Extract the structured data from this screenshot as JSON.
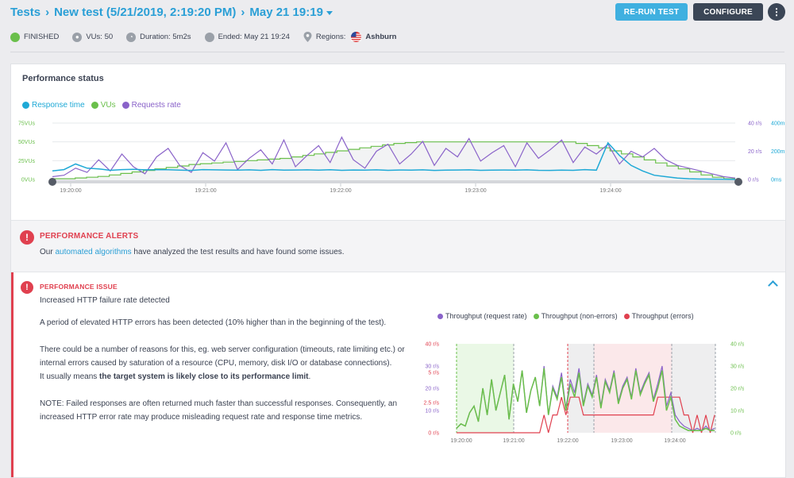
{
  "breadcrumb": {
    "root": "Tests",
    "test_name": "New test (5/21/2019, 2:19:20 PM)",
    "run": "May 21 19:19"
  },
  "toolbar": {
    "rerun_label": "RE-RUN TEST",
    "configure_label": "CONFIGURE",
    "more_label": "⋮"
  },
  "meta": {
    "status": "FINISHED",
    "vus": "VUs: 50",
    "duration": "Duration: 5m2s",
    "ended": "Ended: May 21 19:24",
    "regions_label": "Regions:",
    "region": "Ashburn"
  },
  "colors": {
    "accent": "#2a9fd6",
    "response": "#1fa9d6",
    "vus": "#6abf4b",
    "requests": "#8a63c9",
    "errors": "#e0404f"
  },
  "performance": {
    "title": "Performance status",
    "legend": [
      {
        "name": "Response time",
        "color": "#1fa9d6"
      },
      {
        "name": "VUs",
        "color": "#6abf4b"
      },
      {
        "name": "Requests rate",
        "color": "#8a63c9"
      }
    ]
  },
  "alerts": {
    "title": "PERFORMANCE ALERTS",
    "text_prefix": "Our ",
    "link": "automated algorithms",
    "text_suffix": " have analyzed the test results and have found some issues."
  },
  "issue": {
    "title": "PERFORMANCE ISSUE",
    "subtitle": "Increased HTTP failure rate detected",
    "p1": "A period of elevated HTTP errors has been detected (10% higher than in the beginning of the test).",
    "p2": "There could be a number of reasons for this, eg. web server configuration (timeouts, rate limiting etc.) or internal errors caused by saturation of a resource (CPU, memory, disk I/O or database connections).",
    "p3_prefix": "It usually means ",
    "p3_bold": "the target system is likely close to its performance limit",
    "p3_suffix": ".",
    "p4": "NOTE: Failed responses are often returned much faster than successful responses. Consequently, an increased HTTP error rate may produce misleading request rate and response time metrics."
  },
  "chart_data": [
    {
      "type": "line",
      "x_ticks": [
        "19:20:00",
        "19:21:00",
        "19:22:00",
        "19:23:00",
        "19:24:00"
      ],
      "y_left_ticks": [
        "0VUs",
        "25VUs",
        "50VUs",
        "75VUs"
      ],
      "y_right_rps_ticks": [
        "0 r/s",
        "20 r/s",
        "40 r/s"
      ],
      "y_right_ms_ticks": [
        "0ms",
        "200ms",
        "400ms"
      ],
      "series": [
        {
          "name": "VUs",
          "unit": "VUs",
          "values": [
            1,
            1,
            2,
            3,
            4,
            6,
            8,
            10,
            12,
            14,
            16,
            18,
            20,
            21,
            22,
            23,
            24,
            25,
            26,
            27,
            28,
            30,
            32,
            34,
            36,
            38,
            40,
            42,
            44,
            46,
            48,
            49,
            50,
            50,
            50,
            50,
            50,
            50,
            50,
            50,
            50,
            50,
            50,
            50,
            50,
            50,
            48,
            45,
            42,
            38,
            34,
            30,
            26,
            22,
            18,
            14,
            10,
            6,
            3,
            1
          ]
        },
        {
          "name": "Requests rate",
          "unit": "r/s",
          "values": [
            2,
            3,
            8,
            5,
            14,
            6,
            18,
            9,
            4,
            16,
            22,
            10,
            5,
            19,
            13,
            26,
            7,
            15,
            21,
            11,
            28,
            9,
            17,
            24,
            12,
            30,
            14,
            8,
            20,
            25,
            11,
            18,
            27,
            10,
            22,
            16,
            29,
            13,
            19,
            24,
            9,
            26,
            15,
            21,
            28,
            12,
            23,
            18,
            25,
            11,
            20,
            16,
            22,
            14,
            10,
            8,
            6,
            4,
            2,
            1
          ]
        },
        {
          "name": "Response time",
          "unit": "ms",
          "values": [
            60,
            70,
            110,
            80,
            75,
            65,
            70,
            72,
            68,
            70,
            69,
            66,
            64,
            70,
            68,
            67,
            66,
            68,
            65,
            70,
            66,
            67,
            68,
            66,
            69,
            65,
            67,
            66,
            68,
            65,
            67,
            66,
            68,
            64,
            66,
            67,
            68,
            65,
            66,
            67,
            66,
            68,
            65,
            64,
            66,
            65,
            70,
            66,
            260,
            170,
            100,
            60,
            30,
            20,
            10,
            5,
            3,
            2,
            1,
            0
          ]
        }
      ]
    },
    {
      "type": "line",
      "legend": [
        "Throughput (request rate)",
        "Throughput (non-errors)",
        "Throughput (errors)"
      ],
      "x_ticks": [
        "19:20:00",
        "19:21:00",
        "19:22:00",
        "19:23:00",
        "19:24:00"
      ],
      "y_left_ticks": [
        "0 r/s",
        "10 r/s",
        "20 r/s",
        "30 r/s",
        "40 r/s"
      ],
      "y_left_error_ticks": [
        "0 r/s",
        "2.5 r/s",
        "5 r/s"
      ],
      "y_right_ticks": [
        "0 r/s",
        "10 r/s",
        "20 r/s",
        "30 r/s",
        "40 r/s"
      ],
      "series": [
        {
          "name": "Throughput (request rate)",
          "values": [
            2,
            4,
            3,
            9,
            12,
            5,
            20,
            8,
            24,
            10,
            18,
            26,
            6,
            22,
            14,
            28,
            9,
            19,
            25,
            12,
            30,
            8,
            21,
            16,
            27,
            11,
            24,
            18,
            29,
            13,
            22,
            17,
            26,
            12,
            24,
            19,
            28,
            14,
            21,
            25,
            16,
            29,
            18,
            23,
            27,
            15,
            22,
            30,
            12,
            18,
            8,
            5,
            3,
            2,
            1,
            2,
            1,
            3,
            1,
            2
          ]
        },
        {
          "name": "Throughput (non-errors)",
          "values": [
            2,
            4,
            3,
            9,
            12,
            5,
            20,
            8,
            24,
            10,
            18,
            26,
            6,
            22,
            14,
            28,
            9,
            19,
            25,
            12,
            29,
            8,
            20,
            15,
            25,
            10,
            22,
            16,
            27,
            12,
            21,
            16,
            25,
            11,
            23,
            18,
            27,
            13,
            20,
            24,
            15,
            28,
            17,
            22,
            26,
            14,
            20,
            28,
            10,
            16,
            6,
            3,
            2,
            1,
            1,
            1,
            1,
            2,
            1,
            1
          ]
        },
        {
          "name": "Throughput (errors)",
          "values": [
            0,
            0,
            0,
            0,
            0,
            0,
            0,
            0,
            0,
            0,
            0,
            0,
            0,
            0,
            0,
            0,
            0,
            0,
            0,
            0,
            1,
            0,
            1,
            1,
            2,
            1,
            2,
            2,
            2,
            1,
            1,
            1,
            1,
            1,
            1,
            1,
            1,
            1,
            1,
            1,
            1,
            1,
            1,
            1,
            1,
            1,
            2,
            2,
            2,
            2,
            2,
            2,
            1,
            1,
            0,
            1,
            0,
            1,
            0,
            1
          ]
        }
      ]
    }
  ]
}
